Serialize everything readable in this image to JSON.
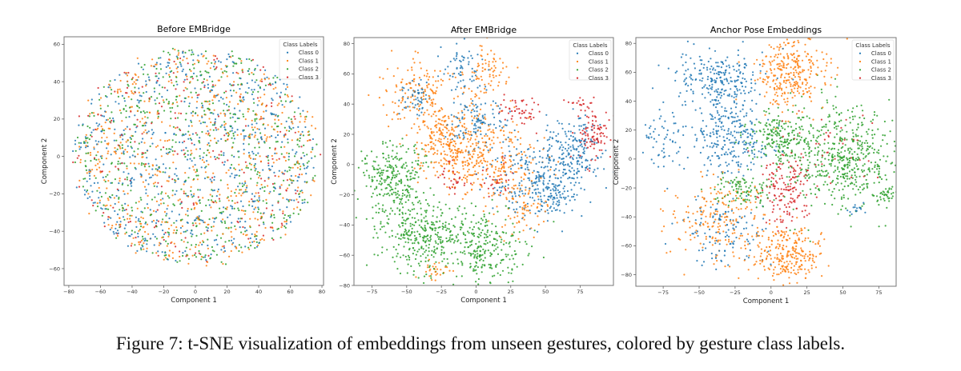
{
  "caption": "Figure 7: t-SNE visualization of embeddings from unseen gestures, colored by gesture class labels.",
  "colors": {
    "Class 0": "#1f77b4",
    "Class 1": "#ff7f0e",
    "Class 2": "#2ca02c",
    "Class 3": "#d62728"
  },
  "chart_data": [
    {
      "type": "scatter",
      "title": "Before EMBridge",
      "xlabel": "Component 1",
      "ylabel": "Component 2",
      "xlim": [
        -83,
        81
      ],
      "ylim": [
        -69,
        64
      ],
      "xticks": [
        -80,
        -60,
        -40,
        -20,
        0,
        20,
        40,
        60,
        80
      ],
      "yticks": [
        -60,
        -40,
        -20,
        0,
        20,
        40,
        60
      ],
      "legend": {
        "title": "Class Labels",
        "entries": [
          "Class 0",
          "Class 1",
          "Class 2",
          "Class 3"
        ],
        "placement": "top-right"
      },
      "grid": false,
      "clusters": [
        {
          "class": 0,
          "center": [
            0,
            0
          ],
          "spread": [
            36,
            27
          ],
          "n": 650
        },
        {
          "class": 1,
          "center": [
            0,
            0
          ],
          "spread": [
            36,
            27
          ],
          "n": 650
        },
        {
          "class": 2,
          "center": [
            0,
            0
          ],
          "spread": [
            36,
            27
          ],
          "n": 650
        },
        {
          "class": 3,
          "center": [
            0,
            0
          ],
          "spread": [
            36,
            27
          ],
          "n": 220
        }
      ]
    },
    {
      "type": "scatter",
      "title": "After EMBridge",
      "xlabel": "Component 1",
      "ylabel": "Component 2",
      "xlim": [
        -88,
        99
      ],
      "ylim": [
        -80,
        84
      ],
      "xticks": [
        -75,
        -50,
        -25,
        0,
        25,
        50,
        75
      ],
      "yticks": [
        -80,
        -60,
        -40,
        -20,
        0,
        20,
        40,
        60,
        80
      ],
      "legend": {
        "title": "Class Labels",
        "entries": [
          "Class 0",
          "Class 1",
          "Class 2",
          "Class 3"
        ],
        "placement": "top-right"
      },
      "grid": false,
      "clusters": [
        {
          "class": 2,
          "center": [
            -60,
            -10
          ],
          "spread": [
            12,
            12
          ],
          "n": 260
        },
        {
          "class": 2,
          "center": [
            -40,
            -45
          ],
          "spread": [
            15,
            12
          ],
          "n": 320
        },
        {
          "class": 2,
          "center": [
            5,
            -55
          ],
          "spread": [
            15,
            12
          ],
          "n": 260
        },
        {
          "class": 1,
          "center": [
            -40,
            45
          ],
          "spread": [
            12,
            12
          ],
          "n": 160
        },
        {
          "class": 1,
          "center": [
            -25,
            15
          ],
          "spread": [
            10,
            10
          ],
          "n": 160
        },
        {
          "class": 1,
          "center": [
            -5,
            10
          ],
          "spread": [
            12,
            15
          ],
          "n": 200
        },
        {
          "class": 1,
          "center": [
            10,
            60
          ],
          "spread": [
            8,
            10
          ],
          "n": 80
        },
        {
          "class": 1,
          "center": [
            35,
            -30
          ],
          "spread": [
            8,
            8
          ],
          "n": 60
        },
        {
          "class": 1,
          "center": [
            -30,
            -70
          ],
          "spread": [
            5,
            3
          ],
          "n": 30
        },
        {
          "class": 1,
          "center": [
            20,
            0
          ],
          "spread": [
            15,
            15
          ],
          "n": 160
        },
        {
          "class": 0,
          "center": [
            -10,
            65
          ],
          "spread": [
            8,
            8
          ],
          "n": 60
        },
        {
          "class": 0,
          "center": [
            0,
            30
          ],
          "spread": [
            12,
            10
          ],
          "n": 120
        },
        {
          "class": 0,
          "center": [
            70,
            10
          ],
          "spread": [
            12,
            12
          ],
          "n": 200
        },
        {
          "class": 0,
          "center": [
            40,
            -10
          ],
          "spread": [
            15,
            12
          ],
          "n": 200
        },
        {
          "class": 0,
          "center": [
            55,
            -20
          ],
          "spread": [
            8,
            8
          ],
          "n": 80
        },
        {
          "class": 0,
          "center": [
            -45,
            45
          ],
          "spread": [
            6,
            6
          ],
          "n": 50
        },
        {
          "class": 3,
          "center": [
            85,
            20
          ],
          "spread": [
            6,
            8
          ],
          "n": 90
        },
        {
          "class": 3,
          "center": [
            30,
            35
          ],
          "spread": [
            8,
            5
          ],
          "n": 50
        },
        {
          "class": 3,
          "center": [
            -15,
            -10
          ],
          "spread": [
            5,
            5
          ],
          "n": 30
        },
        {
          "class": 3,
          "center": [
            15,
            -10
          ],
          "spread": [
            6,
            6
          ],
          "n": 30
        },
        {
          "class": 3,
          "center": [
            75,
            40
          ],
          "spread": [
            6,
            3
          ],
          "n": 20
        }
      ]
    },
    {
      "type": "scatter",
      "title": "Anchor Pose Embeddings",
      "xlabel": "Component 1",
      "ylabel": "Component 2",
      "xlim": [
        -94,
        87
      ],
      "ylim": [
        -88,
        84
      ],
      "xticks": [
        -75,
        -50,
        -25,
        0,
        25,
        50,
        75
      ],
      "yticks": [
        -80,
        -60,
        -40,
        -20,
        0,
        20,
        40,
        60,
        80
      ],
      "legend": {
        "title": "Class Labels",
        "entries": [
          "Class 0",
          "Class 1",
          "Class 2",
          "Class 3"
        ],
        "placement": "top-right"
      },
      "grid": false,
      "clusters": [
        {
          "class": 0,
          "center": [
            -35,
            55
          ],
          "spread": [
            15,
            10
          ],
          "n": 250
        },
        {
          "class": 0,
          "center": [
            -30,
            15
          ],
          "spread": [
            12,
            12
          ],
          "n": 250
        },
        {
          "class": 0,
          "center": [
            -75,
            15
          ],
          "spread": [
            8,
            12
          ],
          "n": 60
        },
        {
          "class": 0,
          "center": [
            -35,
            -50
          ],
          "spread": [
            15,
            12
          ],
          "n": 120
        },
        {
          "class": 0,
          "center": [
            60,
            -35
          ],
          "spread": [
            3,
            2
          ],
          "n": 15
        },
        {
          "class": 1,
          "center": [
            15,
            60
          ],
          "spread": [
            12,
            12
          ],
          "n": 300
        },
        {
          "class": 1,
          "center": [
            -35,
            -40
          ],
          "spread": [
            18,
            15
          ],
          "n": 200
        },
        {
          "class": 1,
          "center": [
            12,
            -65
          ],
          "spread": [
            12,
            10
          ],
          "n": 250
        },
        {
          "class": 2,
          "center": [
            5,
            15
          ],
          "spread": [
            12,
            10
          ],
          "n": 200
        },
        {
          "class": 2,
          "center": [
            50,
            0
          ],
          "spread": [
            18,
            18
          ],
          "n": 500
        },
        {
          "class": 2,
          "center": [
            -20,
            -20
          ],
          "spread": [
            10,
            6
          ],
          "n": 100
        },
        {
          "class": 2,
          "center": [
            80,
            -25
          ],
          "spread": [
            3,
            3
          ],
          "n": 30
        },
        {
          "class": 3,
          "center": [
            10,
            -20
          ],
          "spread": [
            8,
            12
          ],
          "n": 150
        },
        {
          "class": 3,
          "center": [
            45,
            5
          ],
          "spread": [
            20,
            15
          ],
          "n": 40
        }
      ]
    }
  ]
}
